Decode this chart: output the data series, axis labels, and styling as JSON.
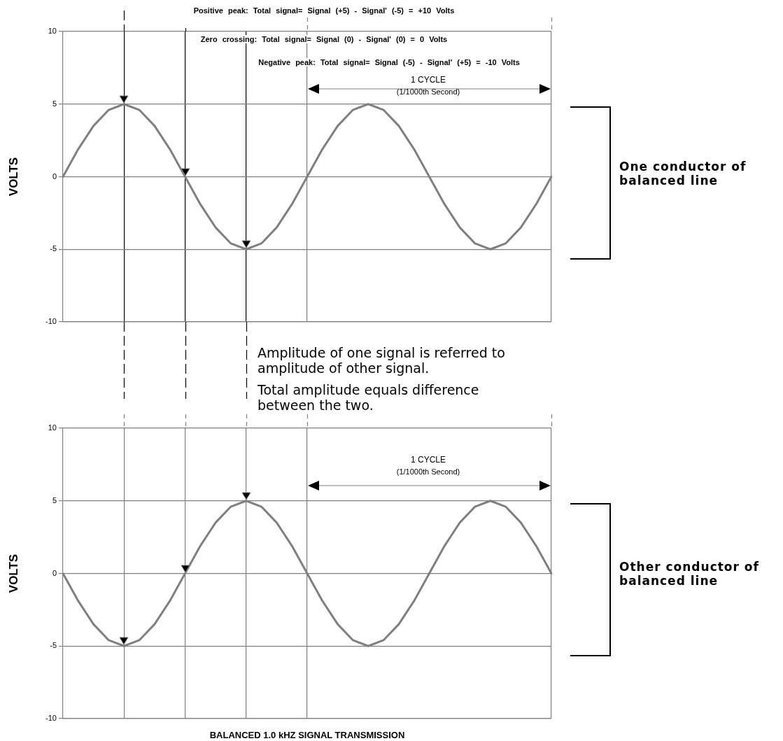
{
  "chart_data": [
    {
      "type": "line",
      "ylabel": "VOLTS",
      "ylim": [
        -10,
        10
      ],
      "yticks": [
        10,
        5,
        0,
        -5,
        -10
      ],
      "grid": true,
      "marker": "none",
      "line_style": "solid",
      "categories": [
        null,
        null,
        null,
        null,
        null,
        null,
        null,
        null,
        null,
        null,
        null,
        null,
        null,
        null,
        null,
        null,
        null,
        null,
        null,
        null,
        null,
        null,
        null,
        null,
        null,
        null,
        null,
        null,
        null,
        null,
        null,
        null,
        null
      ],
      "series": [
        {
          "color": "#808080",
          "values": [
            0,
            1.9,
            3.5,
            4.6,
            5,
            4.6,
            3.5,
            1.9,
            0,
            -1.9,
            -3.5,
            -4.6,
            -5,
            -4.6,
            -3.5,
            -1.9,
            0,
            1.9,
            3.5,
            4.6,
            5,
            4.6,
            3.5,
            1.9,
            0,
            -1.9,
            -3.5,
            -4.6,
            -5,
            -4.6,
            -3.5,
            -1.9,
            0
          ]
        }
      ],
      "annotations": [
        "Positive peak: Total signal= Signal (+5) - Signal' (-5) = +10 Volts",
        "Zero crossing: Total signal= Signal (0) - Signal' (0) = 0 Volts",
        "Negative peak: Total signal= Signal (-5) - Signal' (+5) = -10 Volts",
        "1 CYCLE",
        "(1/1000th Second)",
        "One conductor of balanced line"
      ]
    },
    {
      "type": "line",
      "ylabel": "VOLTS",
      "xlabel": "BALANCED 1.0 kHZ SIGNAL TRANSMISSION",
      "ylim": [
        -10,
        10
      ],
      "yticks": [
        10,
        5,
        0,
        -5,
        -10
      ],
      "grid": true,
      "marker": "none",
      "line_style": "solid",
      "categories": [
        null,
        null,
        null,
        null,
        null,
        null,
        null,
        null,
        null,
        null,
        null,
        null,
        null,
        null,
        null,
        null,
        null,
        null,
        null,
        null,
        null,
        null,
        null,
        null,
        null,
        null,
        null,
        null,
        null,
        null,
        null,
        null,
        null
      ],
      "series": [
        {
          "color": "#808080",
          "values": [
            0,
            -1.9,
            -3.5,
            -4.6,
            -5,
            -4.6,
            -3.5,
            -1.9,
            0,
            1.9,
            3.5,
            4.6,
            5,
            4.6,
            3.5,
            1.9,
            0,
            -1.9,
            -3.5,
            -4.6,
            -5,
            -4.6,
            -3.5,
            -1.9,
            0,
            1.9,
            3.5,
            4.6,
            5,
            4.6,
            3.5,
            1.9,
            0
          ]
        }
      ],
      "annotations": [
        "1 CYCLE",
        "(1/1000th Second)",
        "Other conductor of balanced line",
        "Amplitude of one signal is referred to amplitude of other signal.",
        "Total amplitude equals difference between the two."
      ]
    }
  ]
}
